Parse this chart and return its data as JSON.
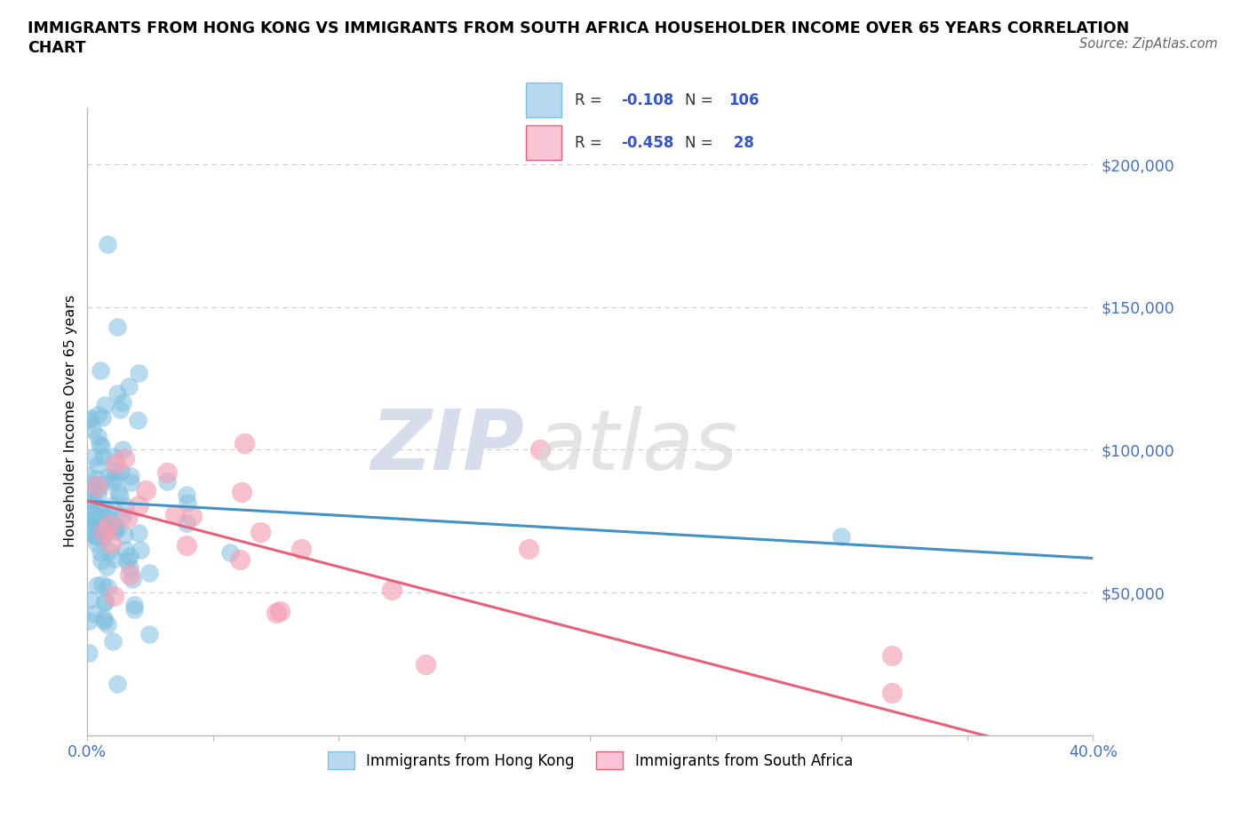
{
  "title_line1": "IMMIGRANTS FROM HONG KONG VS IMMIGRANTS FROM SOUTH AFRICA HOUSEHOLDER INCOME OVER 65 YEARS CORRELATION",
  "title_line2": "CHART",
  "source_text": "Source: ZipAtlas.com",
  "ylabel": "Householder Income Over 65 years",
  "hk_color": "#7fbfdf",
  "sa_color": "#f4a0b5",
  "hk_line_color": "#4292c6",
  "sa_line_color": "#e8607a",
  "hk_R": -0.108,
  "hk_N": 106,
  "sa_R": -0.458,
  "sa_N": 28,
  "xlim": [
    0.0,
    0.4
  ],
  "ylim": [
    0,
    220000
  ],
  "yticks": [
    50000,
    100000,
    150000,
    200000
  ],
  "ytick_labels": [
    "$50,000",
    "$100,000",
    "$150,000",
    "$200,000"
  ],
  "xticks": [
    0.0,
    0.05,
    0.1,
    0.15,
    0.2,
    0.25,
    0.3,
    0.35,
    0.4
  ],
  "xtick_labels": [
    "0.0%",
    "",
    "",
    "",
    "",
    "",
    "",
    "",
    "40.0%"
  ],
  "grid_color": "#cccccc",
  "tick_color": "#4472c4",
  "hk_trend": [
    0.0,
    0.4,
    82000,
    62000
  ],
  "sa_trend": [
    0.0,
    0.4,
    82000,
    -10000
  ]
}
